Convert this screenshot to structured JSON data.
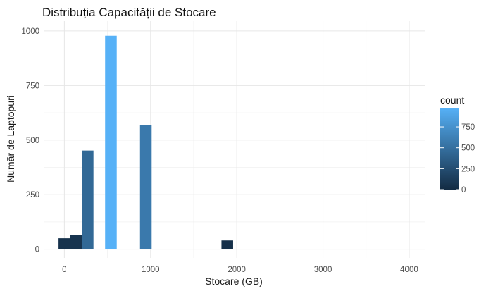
{
  "chart_data": {
    "type": "bar",
    "title": "Distribuția Capacității de Stocare",
    "xlabel": "Stocare (GB)",
    "ylabel": "Număr de Laptopuri",
    "xlim": [
      -240,
      4180
    ],
    "ylim": [
      -40,
      1045
    ],
    "x_ticks": [
      0,
      1000,
      2000,
      3000,
      4000
    ],
    "y_ticks": [
      0,
      250,
      500,
      750,
      1000
    ],
    "bin_width": 135,
    "grid": true,
    "bars": [
      {
        "x": 0,
        "count": 50
      },
      {
        "x": 135,
        "count": 65
      },
      {
        "x": 270,
        "count": 452
      },
      {
        "x": 540,
        "count": 978
      },
      {
        "x": 945,
        "count": 570
      },
      {
        "x": 1890,
        "count": 40
      }
    ],
    "legend": {
      "title": "count",
      "position": "right",
      "ticks": [
        0,
        250,
        500,
        750
      ],
      "range": [
        0,
        978
      ],
      "color_low": "#132B43",
      "color_high": "#56B1F7"
    }
  }
}
